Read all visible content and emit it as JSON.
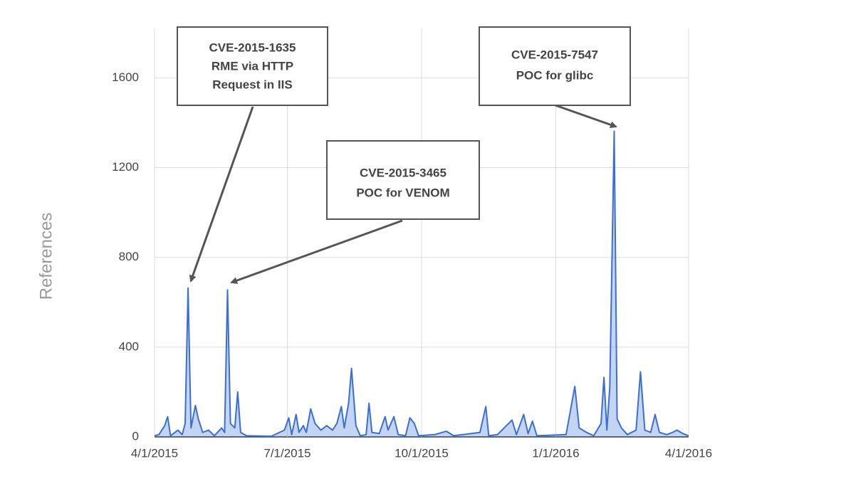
{
  "chart_data": {
    "type": "area",
    "y_label": "References",
    "x": [
      "2015-04-01",
      "2015-04-04",
      "2015-04-08",
      "2015-04-10",
      "2015-04-12",
      "2015-04-17",
      "2015-04-20",
      "2015-04-22",
      "2015-04-24",
      "2015-04-26",
      "2015-04-29",
      "2015-05-01",
      "2015-05-04",
      "2015-05-08",
      "2015-05-12",
      "2015-05-17",
      "2015-05-19",
      "2015-05-21",
      "2015-05-23",
      "2015-05-26",
      "2015-05-28",
      "2015-05-30",
      "2015-06-03",
      "2015-06-20",
      "2015-06-29",
      "2015-07-02",
      "2015-07-04",
      "2015-07-07",
      "2015-07-09",
      "2015-07-12",
      "2015-07-14",
      "2015-07-17",
      "2015-07-20",
      "2015-07-24",
      "2015-07-28",
      "2015-08-01",
      "2015-08-04",
      "2015-08-07",
      "2015-08-09",
      "2015-08-12",
      "2015-08-14",
      "2015-08-17",
      "2015-08-20",
      "2015-08-24",
      "2015-08-26",
      "2015-08-28",
      "2015-09-02",
      "2015-09-06",
      "2015-09-08",
      "2015-09-12",
      "2015-09-15",
      "2015-09-20",
      "2015-09-23",
      "2015-09-26",
      "2015-09-29",
      "2015-10-10",
      "2015-10-18",
      "2015-10-23",
      "2015-11-10",
      "2015-11-14",
      "2015-11-16",
      "2015-11-22",
      "2015-12-02",
      "2015-12-05",
      "2015-12-10",
      "2015-12-13",
      "2015-12-16",
      "2015-12-19",
      "2016-01-08",
      "2016-01-14",
      "2016-01-17",
      "2016-01-22",
      "2016-01-27",
      "2016-02-01",
      "2016-02-03",
      "2016-02-05",
      "2016-02-07",
      "2016-02-10",
      "2016-02-12",
      "2016-02-15",
      "2016-02-19",
      "2016-02-25",
      "2016-02-28",
      "2016-03-02",
      "2016-03-06",
      "2016-03-09",
      "2016-03-12",
      "2016-03-17",
      "2016-03-21",
      "2016-03-24",
      "2016-03-28",
      "2016-04-01"
    ],
    "values": [
      5,
      10,
      50,
      90,
      5,
      30,
      10,
      60,
      663,
      40,
      140,
      80,
      20,
      30,
      5,
      40,
      20,
      655,
      60,
      40,
      200,
      20,
      5,
      3,
      30,
      85,
      10,
      100,
      20,
      50,
      20,
      125,
      60,
      30,
      50,
      30,
      60,
      135,
      40,
      150,
      305,
      50,
      5,
      10,
      150,
      20,
      15,
      90,
      30,
      90,
      10,
      5,
      85,
      60,
      5,
      10,
      25,
      5,
      20,
      135,
      5,
      10,
      75,
      10,
      100,
      15,
      70,
      5,
      10,
      225,
      40,
      20,
      5,
      60,
      265,
      30,
      220,
      1362,
      80,
      40,
      10,
      30,
      290,
      30,
      20,
      100,
      20,
      10,
      20,
      30,
      15,
      5
    ],
    "color": "#3b6fd6",
    "xlim": [
      "2015-04-01",
      "2016-04-01"
    ],
    "xticks": [
      {
        "value": "2015-04-01",
        "label": "4/1/2015"
      },
      {
        "value": "2015-07-01",
        "label": "7/1/2015"
      },
      {
        "value": "2015-10-01",
        "label": "10/1/2015"
      },
      {
        "value": "2016-01-01",
        "label": "1/1/2016"
      },
      {
        "value": "2016-04-01",
        "label": "4/1/2016"
      }
    ],
    "ylim": [
      0,
      1820
    ],
    "yticks": [
      0,
      400,
      800,
      1200,
      1600
    ],
    "grid": true,
    "annotations": [
      {
        "lines": [
          "CVE-2015-1635",
          "RME via HTTP",
          "Request in IIS"
        ]
      },
      {
        "lines": [
          "CVE-2015-3465",
          "POC for VENOM"
        ]
      },
      {
        "lines": [
          "CVE-2015-7547",
          "POC for glibc"
        ]
      }
    ]
  }
}
